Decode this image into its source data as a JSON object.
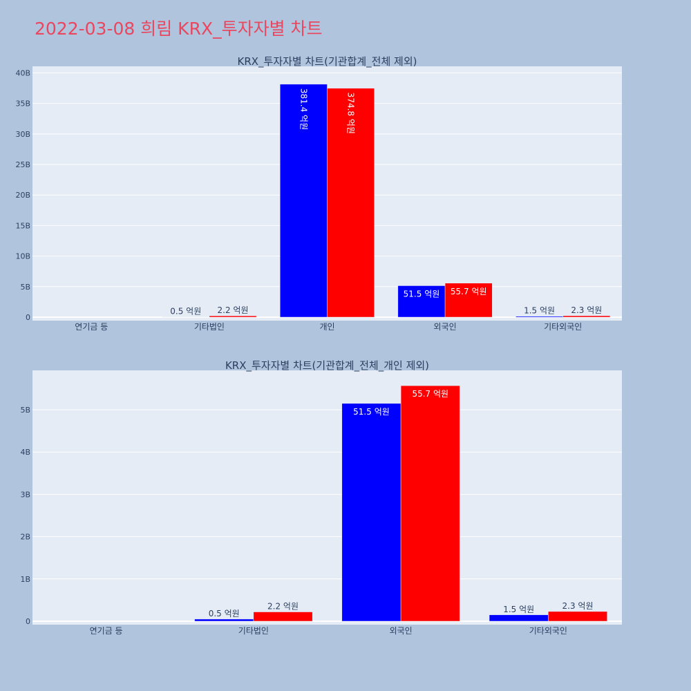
{
  "page_title": "2022-03-08 희림 KRX_투자자별 차트",
  "colors": {
    "background": "#b0c4de",
    "plot_bg": "#e5ecf6",
    "title": "#e8475f",
    "series_a": "#0000ff",
    "series_b": "#ff0000"
  },
  "chart_data": [
    {
      "type": "bar",
      "title": "KRX_투자자별 차트(기관합계_전체 제외)",
      "categories": [
        "연기금 등",
        "기타법인",
        "개인",
        "외국인",
        "기타외국인"
      ],
      "series": [
        {
          "color": "#0000ff",
          "values": [
            0,
            50000000,
            38140000000,
            5150000000,
            150000000
          ],
          "labels": [
            "",
            "0.5 억원",
            "381.4 억원",
            "51.5 억원",
            "1.5 억원"
          ]
        },
        {
          "color": "#ff0000",
          "values": [
            0,
            220000000,
            37480000000,
            5570000000,
            230000000
          ],
          "labels": [
            "",
            "2.2 억원",
            "374.8 억원",
            "55.7 억원",
            "2.3 억원"
          ]
        }
      ],
      "ylim": [
        0,
        40500000000
      ],
      "yticks": [
        0,
        5000000000,
        10000000000,
        15000000000,
        20000000000,
        25000000000,
        30000000000,
        35000000000,
        40000000000
      ],
      "ytick_labels": [
        "0",
        "5B",
        "10B",
        "15B",
        "20B",
        "25B",
        "30B",
        "35B",
        "40B"
      ],
      "label_rotate": [
        false,
        false,
        true,
        false,
        false
      ],
      "grid": true
    },
    {
      "type": "bar",
      "title": "KRX_투자자별 차트(기관합계_전체_개인 제외)",
      "categories": [
        "연기금 등",
        "기타법인",
        "외국인",
        "기타외국인"
      ],
      "series": [
        {
          "color": "#0000ff",
          "values": [
            0,
            50000000,
            5150000000,
            150000000
          ],
          "labels": [
            "",
            "0.5 억원",
            "51.5 억원",
            "1.5 억원"
          ]
        },
        {
          "color": "#ff0000",
          "values": [
            0,
            220000000,
            5570000000,
            230000000
          ],
          "labels": [
            "",
            "2.2 억원",
            "55.7 억원",
            "2.3 억원"
          ]
        }
      ],
      "ylim": [
        0,
        5850000000
      ],
      "yticks": [
        0,
        1000000000,
        2000000000,
        3000000000,
        4000000000,
        5000000000
      ],
      "ytick_labels": [
        "0",
        "1B",
        "2B",
        "3B",
        "4B",
        "5B"
      ],
      "label_rotate": [
        false,
        false,
        false,
        false
      ],
      "grid": true
    }
  ]
}
